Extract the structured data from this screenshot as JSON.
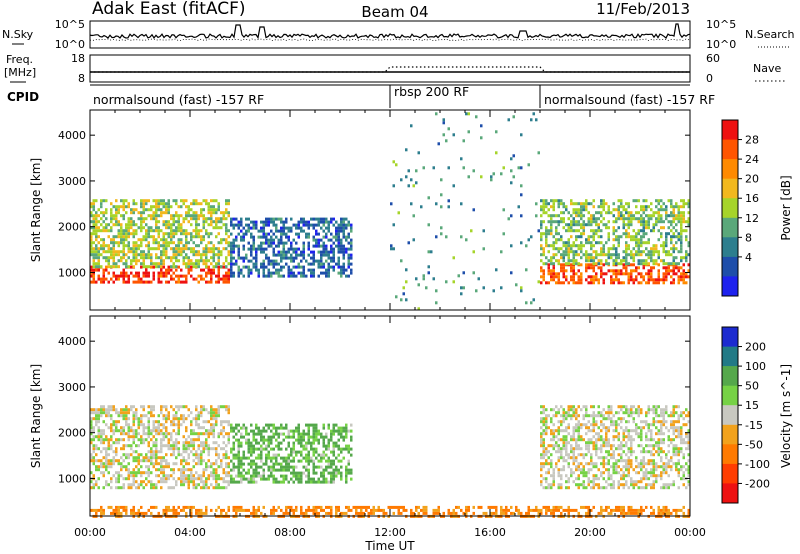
{
  "header": {
    "title": "Adak East (fitACF)",
    "beam": "Beam 04",
    "date": "11/Feb/2013"
  },
  "noise_panel": {
    "left_label": "N.Sky",
    "right_label": "N.Search",
    "left_ticks": [
      "10^5",
      "10^0"
    ],
    "right_ticks": [
      "10^5",
      "10^0"
    ],
    "left_tick_values": [
      100000,
      1
    ],
    "right_tick_values": [
      100000,
      1
    ],
    "scale": "log"
  },
  "freq_panel": {
    "left_label": "Freq.",
    "left_unit": "[MHz]",
    "right_label": "Nave",
    "left_ticks": [
      "18",
      "8"
    ],
    "right_ticks": [
      "60",
      "0"
    ],
    "freq_range_mhz": [
      8,
      18
    ],
    "nave_range": [
      0,
      60
    ]
  },
  "cpid_panel": {
    "label": "CPID",
    "segments": [
      {
        "text": "normalsound (fast) -157 RF",
        "start_hour": 0,
        "end_hour": 12
      },
      {
        "text": "rbsp 200 RF",
        "start_hour": 12,
        "end_hour": 18
      },
      {
        "text": "normalsound (fast) -157 RF",
        "start_hour": 18,
        "end_hour": 24
      }
    ]
  },
  "axes": {
    "y_label": "Slant Range [km]",
    "y_ticks": [
      "1000",
      "2000",
      "3000",
      "4000"
    ],
    "y_tick_values": [
      1000,
      2000,
      3000,
      4000
    ],
    "y_range_km": [
      180,
      4550
    ],
    "x_label": "Time UT",
    "x_ticks": [
      "00:00",
      "04:00",
      "08:00",
      "12:00",
      "16:00",
      "20:00",
      "00:00"
    ],
    "x_tick_hours": [
      0,
      4,
      8,
      12,
      16,
      20,
      24
    ],
    "x_range_hours": [
      0,
      24
    ]
  },
  "power_colorbar": {
    "label": "Power [dB]",
    "ticks": [
      "28",
      "24",
      "20",
      "16",
      "12",
      "8",
      "4"
    ],
    "colors": [
      "#ee1111",
      "#ff5500",
      "#ff8a00",
      "#f2b81e",
      "#a6d42a",
      "#5aa87a",
      "#2d7e8e",
      "#1e4eaa",
      "#1e22ee"
    ]
  },
  "velocity_colorbar": {
    "label": "Velocity [m s^-1]",
    "ticks": [
      "200",
      "100",
      "50",
      "15",
      "-15",
      "-50",
      "-100",
      "-200"
    ],
    "colors": [
      "#1c2bd0",
      "#227a86",
      "#55a84b",
      "#76d245",
      "#c8c8c0",
      "#f2a21c",
      "#ff7a00",
      "#ff3d00",
      "#ee1111"
    ]
  },
  "chart_data": {
    "type": "heatmap",
    "title": "Adak East (fitACF)",
    "subtitle": "Beam 04",
    "xlabel": "Time UT",
    "ylabel": "Slant Range [km]",
    "xlim": [
      0,
      24
    ],
    "ylim": [
      180,
      4550
    ],
    "grid": false,
    "panels": [
      {
        "name": "Power",
        "unit": "dB",
        "colorbar_range": [
          0,
          32
        ],
        "regions": [
          {
            "hours": [
              0,
              5.6
            ],
            "slant_range_km": [
              800,
              1150
            ],
            "power_db": 30
          },
          {
            "hours": [
              0,
              5.6
            ],
            "slant_range_km": [
              1150,
              2600
            ],
            "power_db": 16
          },
          {
            "hours": [
              5.6,
              10.5
            ],
            "slant_range_km": [
              900,
              2200
            ],
            "power_db": 6
          },
          {
            "hours": [
              18.0,
              24
            ],
            "slant_range_km": [
              800,
              1200
            ],
            "power_db": 28
          },
          {
            "hours": [
              18.0,
              24
            ],
            "slant_range_km": [
              1200,
              2600
            ],
            "power_db": 14
          },
          {
            "hours": [
              12,
              18
            ],
            "slant_range_km": [
              180,
              4500
            ],
            "power_db": 10
          }
        ]
      },
      {
        "name": "Velocity",
        "unit": "m s^-1",
        "colorbar_range": [
          -250,
          250
        ],
        "regions": [
          {
            "hours": [
              0,
              5.6
            ],
            "slant_range_km": [
              800,
              2600
            ],
            "velocity": 0
          },
          {
            "hours": [
              5.6,
              10.5
            ],
            "slant_range_km": [
              900,
              2200
            ],
            "velocity": 40
          },
          {
            "hours": [
              18.0,
              24
            ],
            "slant_range_km": [
              800,
              2600
            ],
            "velocity": 0
          },
          {
            "hours": [
              0,
              24
            ],
            "slant_range_km": [
              180,
              400
            ],
            "velocity": -60
          }
        ]
      }
    ]
  }
}
